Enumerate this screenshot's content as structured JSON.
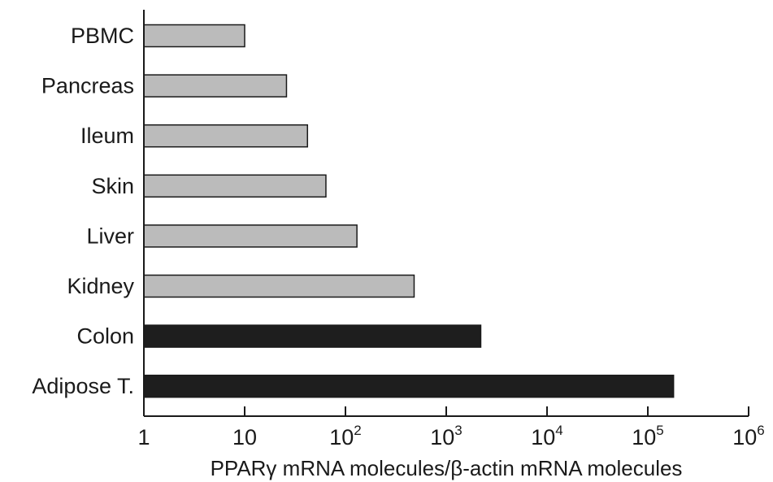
{
  "chart_data": {
    "type": "bar",
    "orientation": "horizontal",
    "x_scale": "log",
    "xlim": [
      1,
      1000000
    ],
    "xlabel": "PPARγ mRNA molecules/β-actin mRNA molecules",
    "categories": [
      "PBMC",
      "Pancreas",
      "Ileum",
      "Skin",
      "Liver",
      "Kidney",
      "Colon",
      "Adipose T."
    ],
    "values": [
      10,
      26,
      42,
      64,
      130,
      480,
      2200,
      180000
    ],
    "bar_colors": [
      "#bbbbbb",
      "#bbbbbb",
      "#bbbbbb",
      "#bbbbbb",
      "#bbbbbb",
      "#bbbbbb",
      "#1e1e1e",
      "#1e1e1e"
    ],
    "x_ticks": [
      {
        "base": "1",
        "exp": ""
      },
      {
        "base": "10",
        "exp": ""
      },
      {
        "base": "10",
        "exp": "2"
      },
      {
        "base": "10",
        "exp": "3"
      },
      {
        "base": "10",
        "exp": "4"
      },
      {
        "base": "10",
        "exp": "5"
      },
      {
        "base": "10",
        "exp": "6"
      }
    ],
    "grid": false,
    "legend": "none"
  }
}
